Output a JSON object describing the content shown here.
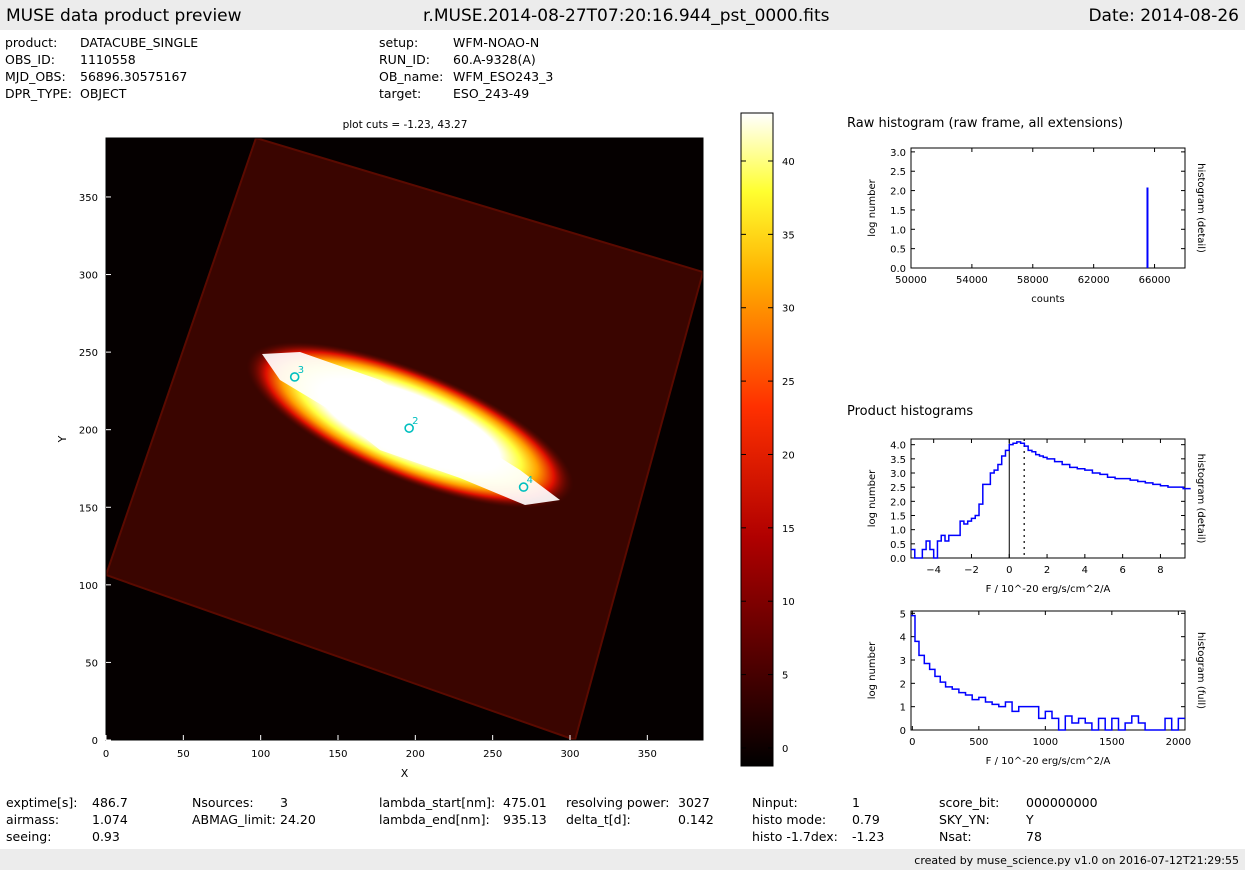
{
  "header": {
    "title": "MUSE data product preview",
    "filename": "r.MUSE.2014-08-27T07:20:16.944_pst_0000.fits",
    "date": "Date: 2014-08-26"
  },
  "meta_left": [
    {
      "k": "product:",
      "v": "DATACUBE_SINGLE"
    },
    {
      "k": "OBS_ID:",
      "v": "1110558"
    },
    {
      "k": "MJD_OBS:",
      "v": "56896.30575167"
    },
    {
      "k": "DPR_TYPE:",
      "v": "OBJECT"
    }
  ],
  "meta_right": [
    {
      "k": "setup:",
      "v": "WFM-NOAO-N"
    },
    {
      "k": "RUN_ID:",
      "v": "60.A-9328(A)"
    },
    {
      "k": "OB_name:",
      "v": "WFM_ESO243_3"
    },
    {
      "k": "target:",
      "v": "ESO_243-49"
    }
  ],
  "footer_stats": [
    {
      "k": "exptime[s]:",
      "v": "486.7"
    },
    {
      "k": "airmass:",
      "v": "1.074"
    },
    {
      "k": "seeing:",
      "v": "0.93"
    },
    {
      "k": "Nsources:",
      "v": "3"
    },
    {
      "k": "ABMAG_limit:",
      "v": "24.20"
    },
    {
      "k": "lambda_start[nm]:",
      "v": "475.01"
    },
    {
      "k": "lambda_end[nm]:",
      "v": "935.13"
    },
    {
      "k": "resolving power:",
      "v": "3027"
    },
    {
      "k": "delta_t[d]:",
      "v": "0.142"
    },
    {
      "k": "Ninput:",
      "v": "1"
    },
    {
      "k": "histo mode:",
      "v": "0.79"
    },
    {
      "k": "histo -1.7dex:",
      "v": "-1.23"
    },
    {
      "k": "score_bit:",
      "v": "000000000"
    },
    {
      "k": "SKY_YN:",
      "v": "Y"
    },
    {
      "k": "Nsat:",
      "v": "78"
    }
  ],
  "footer": "created by muse_science.py v1.0 on 2016-07-12T21:29:55",
  "colors": {
    "accent": "#0000ff",
    "marker": "#00bfbf",
    "band": "#ececec"
  },
  "chart_data": [
    {
      "type": "heatmap",
      "title": "plot cuts = -1.23, 43.27",
      "xlabel": "X",
      "ylabel": "Y",
      "xlim": [
        0,
        386
      ],
      "ylim": [
        0,
        388
      ],
      "xticks": [
        0,
        50,
        100,
        150,
        200,
        250,
        300,
        350
      ],
      "yticks": [
        0,
        50,
        100,
        150,
        200,
        250,
        300,
        350
      ],
      "colorbar": {
        "range": [
          -1.23,
          43.27
        ],
        "ticks": [
          0,
          5,
          10,
          15,
          20,
          25,
          30,
          35,
          40
        ]
      },
      "sources": [
        {
          "label": "2",
          "x": 196,
          "y": 201
        },
        {
          "label": "3",
          "x": 122,
          "y": 234
        },
        {
          "label": "4",
          "x": 270,
          "y": 163
        }
      ]
    },
    {
      "type": "bar",
      "title": "Raw histogram (raw frame, all extensions)",
      "xlabel": "counts",
      "ylabel": "log number",
      "right_label": "histogram (detail)",
      "xlim": [
        50000,
        68000
      ],
      "ylim": [
        0,
        3.1
      ],
      "xticks": [
        50000,
        54000,
        58000,
        62000,
        66000
      ],
      "yticks": [
        0.0,
        0.5,
        1.0,
        1.5,
        2.0,
        2.5,
        3.0
      ],
      "series": [
        {
          "x": [
            65535
          ],
          "values": [
            2.08
          ]
        }
      ]
    },
    {
      "type": "line",
      "title": "Product histograms",
      "xlabel": "F / 10^-20 erg/s/cm^2/A",
      "ylabel": "log number",
      "right_label": "histogram (detail)",
      "xlim": [
        -5.2,
        9.3
      ],
      "ylim": [
        0,
        4.2
      ],
      "xticks": [
        -4,
        -2,
        0,
        2,
        4,
        6,
        8
      ],
      "yticks": [
        0.0,
        0.5,
        1.0,
        1.5,
        2.0,
        2.5,
        3.0,
        3.5,
        4.0
      ],
      "vlines": [
        0,
        0.79
      ],
      "x": [
        -5.2,
        -5.0,
        -4.8,
        -4.6,
        -4.4,
        -4.2,
        -4.0,
        -3.8,
        -3.6,
        -3.4,
        -3.2,
        -3.0,
        -2.8,
        -2.6,
        -2.4,
        -2.2,
        -2.0,
        -1.8,
        -1.6,
        -1.4,
        -1.2,
        -1.0,
        -0.8,
        -0.6,
        -0.4,
        -0.2,
        0.0,
        0.2,
        0.4,
        0.6,
        0.8,
        1.0,
        1.2,
        1.4,
        1.6,
        1.8,
        2.0,
        2.4,
        2.8,
        3.2,
        3.6,
        4.0,
        4.4,
        4.8,
        5.2,
        5.6,
        6.0,
        6.4,
        6.8,
        7.2,
        7.6,
        8.0,
        8.4,
        8.8,
        9.2
      ],
      "values": [
        0.3,
        0.0,
        0.0,
        0.3,
        0.6,
        0.3,
        0.0,
        0.6,
        0.8,
        0.6,
        0.8,
        0.8,
        0.8,
        1.3,
        1.2,
        1.3,
        1.4,
        1.5,
        1.9,
        2.6,
        2.6,
        3.0,
        3.1,
        3.3,
        3.6,
        3.8,
        4.0,
        4.05,
        4.1,
        4.05,
        3.95,
        3.8,
        3.75,
        3.65,
        3.6,
        3.55,
        3.5,
        3.4,
        3.3,
        3.2,
        3.15,
        3.1,
        3.0,
        2.95,
        2.85,
        2.8,
        2.8,
        2.75,
        2.7,
        2.65,
        2.6,
        2.55,
        2.5,
        2.5,
        2.45
      ]
    },
    {
      "type": "line",
      "xlabel": "F / 10^-20 erg/s/cm^2/A",
      "ylabel": "log number",
      "right_label": "histogram (full)",
      "xlim": [
        -10,
        2050
      ],
      "ylim": [
        0,
        5.1
      ],
      "xticks": [
        0,
        500,
        1000,
        1500,
        2000
      ],
      "yticks": [
        0,
        1,
        2,
        3,
        4,
        5
      ],
      "x": [
        -10,
        20,
        50,
        90,
        130,
        170,
        210,
        250,
        300,
        350,
        400,
        450,
        500,
        550,
        600,
        650,
        700,
        750,
        800,
        850,
        900,
        950,
        1000,
        1050,
        1100,
        1150,
        1200,
        1250,
        1300,
        1350,
        1400,
        1450,
        1500,
        1550,
        1600,
        1650,
        1700,
        1750,
        1800,
        1850,
        1900,
        1950,
        2000
      ],
      "values": [
        4.9,
        3.8,
        3.2,
        2.85,
        2.6,
        2.3,
        2.05,
        1.85,
        1.75,
        1.6,
        1.5,
        1.3,
        1.4,
        1.2,
        1.1,
        1.0,
        1.2,
        0.8,
        1.0,
        1.0,
        1.0,
        0.5,
        0.8,
        0.5,
        0.0,
        0.6,
        0.3,
        0.5,
        0.3,
        0.0,
        0.5,
        0.0,
        0.5,
        0.0,
        0.3,
        0.6,
        0.3,
        0.0,
        0.0,
        0.0,
        0.5,
        0.0,
        0.5
      ]
    }
  ]
}
